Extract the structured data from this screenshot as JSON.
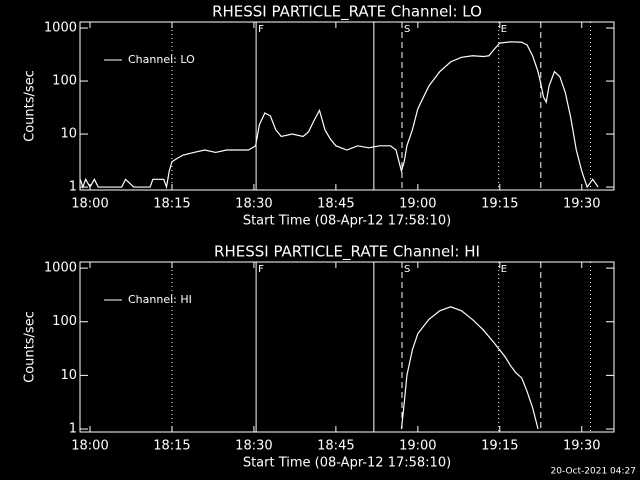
{
  "chart_data": [
    {
      "type": "line",
      "title": "RHESSI PARTICLE_RATE Channel: LO",
      "x_label": "Start Time (08-Apr-12 17:58:10)",
      "y_label": "Counts/sec",
      "log_y": true,
      "legend": "upper left",
      "color": "#ffffff",
      "xlim": [
        -1.83,
        95.9
      ],
      "xticks": [
        {
          "value": 0,
          "label": "18:00"
        },
        {
          "value": 15,
          "label": "18:15"
        },
        {
          "value": 30,
          "label": "18:30"
        },
        {
          "value": 45,
          "label": "18:45"
        },
        {
          "value": 60,
          "label": "19:00"
        },
        {
          "value": 75,
          "label": "19:15"
        },
        {
          "value": 90,
          "label": "19:30"
        }
      ],
      "ylim": [
        0.88,
        1300
      ],
      "yticks": [
        1,
        10,
        100,
        1000
      ],
      "markers": [
        {
          "x": 15,
          "style": "dotted"
        },
        {
          "x": 30.4,
          "style": "solid",
          "label": "F"
        },
        {
          "x": 51.95,
          "style": "solid"
        },
        {
          "x": 57.1,
          "style": "dashed",
          "label": "S"
        },
        {
          "x": 74.8,
          "style": "dotted",
          "label": "E"
        },
        {
          "x": 82.5,
          "style": "dashed"
        },
        {
          "x": 91.6,
          "style": "dotted"
        }
      ],
      "series": [
        {
          "name": "Channel: LO",
          "color": "#ffffff",
          "x": [
            -1.8,
            -1.3,
            -0.8,
            0,
            0.8,
            1.5,
            2.5,
            5.8,
            6.5,
            8,
            11,
            11.5,
            13.5,
            14,
            14.5,
            15,
            16,
            17,
            19,
            21,
            23,
            25,
            27,
            29,
            30.3,
            31,
            32,
            33,
            34,
            35,
            37,
            39,
            40,
            41,
            42,
            43,
            44,
            45,
            47,
            49,
            51,
            53,
            55,
            56,
            57,
            57.5,
            58,
            59,
            60,
            62,
            64,
            66,
            68,
            70,
            72,
            73,
            74,
            75,
            77,
            79,
            80,
            81,
            82,
            82.5,
            83,
            83.5,
            84,
            85,
            86,
            87,
            88,
            89,
            90,
            90.5,
            91,
            92,
            93
          ],
          "values": [
            1.4,
            1,
            1.4,
            1,
            1.4,
            1,
            1,
            1,
            1.4,
            1,
            1,
            1.4,
            1.4,
            1,
            2,
            3,
            3.5,
            4,
            4.5,
            5,
            4.5,
            5,
            5,
            5,
            6,
            15,
            25,
            22,
            12,
            9,
            10,
            9,
            11,
            18,
            28,
            12,
            8,
            6,
            5,
            6,
            5.5,
            6,
            6,
            5,
            2,
            3,
            6,
            12,
            30,
            80,
            150,
            230,
            280,
            300,
            290,
            300,
            400,
            520,
            550,
            540,
            480,
            300,
            150,
            90,
            50,
            40,
            80,
            150,
            120,
            60,
            20,
            5,
            2,
            1.4,
            1,
            1.4,
            1
          ]
        }
      ]
    },
    {
      "type": "line",
      "title": "RHESSI PARTICLE_RATE Channel: HI",
      "x_label": "Start Time (08-Apr-12 17:58:10)",
      "y_label": "Counts/sec",
      "log_y": true,
      "legend": "upper left",
      "color": "#ffffff",
      "xlim": [
        -1.83,
        95.9
      ],
      "xticks": [
        {
          "value": 0,
          "label": "18:00"
        },
        {
          "value": 15,
          "label": "18:15"
        },
        {
          "value": 30,
          "label": "18:30"
        },
        {
          "value": 45,
          "label": "18:45"
        },
        {
          "value": 60,
          "label": "19:00"
        },
        {
          "value": 75,
          "label": "19:15"
        },
        {
          "value": 90,
          "label": "19:30"
        }
      ],
      "ylim": [
        0.88,
        1300
      ],
      "yticks": [
        1,
        10,
        100,
        1000
      ],
      "markers": [
        {
          "x": 15,
          "style": "dotted"
        },
        {
          "x": 30.4,
          "style": "solid",
          "label": "F"
        },
        {
          "x": 51.95,
          "style": "solid"
        },
        {
          "x": 57.1,
          "style": "dashed",
          "label": "S"
        },
        {
          "x": 74.8,
          "style": "dotted",
          "label": "E"
        },
        {
          "x": 82.5,
          "style": "dashed"
        },
        {
          "x": 91.6,
          "style": "dotted"
        }
      ],
      "series": [
        {
          "name": "Channel: HI",
          "color": "#ffffff",
          "x": [
            57,
            57.5,
            58,
            59,
            60,
            62,
            64,
            66,
            68,
            70,
            72,
            74,
            76,
            77,
            78,
            79,
            80,
            81,
            82
          ],
          "values": [
            1,
            3,
            10,
            30,
            60,
            110,
            160,
            190,
            160,
            110,
            70,
            40,
            22,
            15,
            11,
            9,
            5,
            2.5,
            1
          ]
        }
      ]
    }
  ],
  "footer": "20-Oct-2021 04:27"
}
